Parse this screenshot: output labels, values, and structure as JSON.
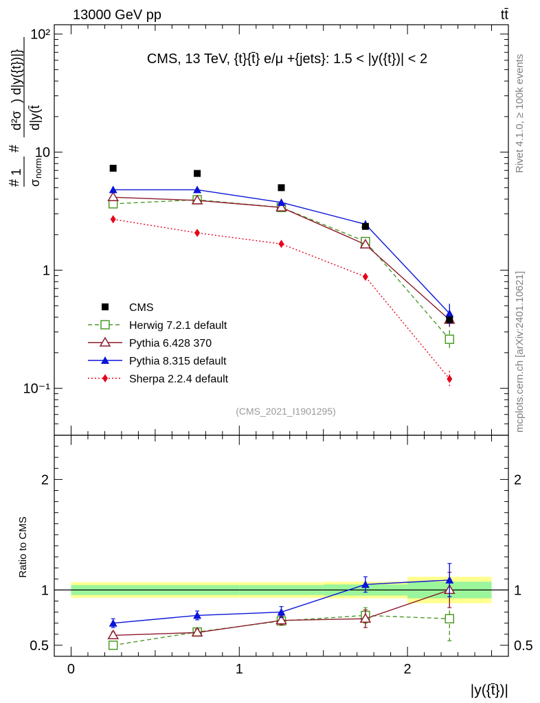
{
  "header": {
    "energy_label": "13000 GeV pp",
    "process_label": "tt̄"
  },
  "side_labels": {
    "rivet": "Rivet 4.1.0, ≥ 100k events",
    "source": "mcplots.cern.ch [arXiv:2401.10621]"
  },
  "chart_data": {
    "type": "line",
    "title": "CMS, 13 TeV, {t}{t̄} e/μ +{jets}: 1.5 < |y({t})| < 2",
    "watermark": "(CMS_2021_I1901295)",
    "xlabel": "|y({t̄})|",
    "ylabel_main": "1/σnorm d²σ / d|y(t̄)| d|y({t})|",
    "ylabel_ratio": "Ratio to CMS",
    "x_range": [
      -0.1,
      2.6
    ],
    "y_range_main": [
      0.04,
      120
    ],
    "y_scale_main": "log",
    "y_range_ratio": [
      0.4,
      2.4
    ],
    "x_ticks": [
      "0",
      "1",
      "2"
    ],
    "y_ticks_main": [
      "10⁻¹",
      "1",
      "10",
      "10²"
    ],
    "y_ticks_ratio": [
      "0.5",
      "1",
      "2"
    ],
    "bins": [
      [
        0,
        0.5
      ],
      [
        0.5,
        1
      ],
      [
        1,
        1.5
      ],
      [
        1.5,
        2
      ],
      [
        2,
        2.5
      ]
    ],
    "x": [
      0.25,
      0.75,
      1.25,
      1.75,
      2.25
    ],
    "data": {
      "name": "CMS",
      "values": [
        7.3,
        6.6,
        5.0,
        2.35,
        0.38
      ],
      "band_inner": [
        0.045,
        0.045,
        0.045,
        0.05,
        0.075
      ],
      "band_outer": [
        0.07,
        0.07,
        0.07,
        0.075,
        0.12
      ]
    },
    "series": [
      {
        "name": "Herwig 7.2.1 default",
        "color": "#4c9a26",
        "dash": "6,4",
        "marker": "open-square",
        "values": [
          3.65,
          3.95,
          3.4,
          1.75,
          0.26
        ],
        "errors": [
          0.12,
          0.14,
          0.14,
          0.1,
          0.05
        ],
        "ratio": [
          0.5,
          0.62,
          0.72,
          0.77,
          0.74
        ],
        "ratio_errors": [
          0.03,
          0.03,
          0.04,
          0.07,
          0.2
        ]
      },
      {
        "name": "Pythia 6.428 370",
        "color": "#8b1a2a",
        "dash": "",
        "marker": "open-triangle",
        "values": [
          4.15,
          3.9,
          3.4,
          1.65,
          0.38
        ],
        "errors": [
          0.14,
          0.14,
          0.14,
          0.12,
          0.05
        ],
        "ratio": [
          0.59,
          0.615,
          0.725,
          0.74,
          1.0
        ],
        "ratio_errors": [
          0.03,
          0.03,
          0.04,
          0.08,
          0.16
        ]
      },
      {
        "name": "Pythia 8.315 default",
        "color": "#0a14d8",
        "dash": "",
        "marker": "filled-triangle",
        "values": [
          4.8,
          4.8,
          3.75,
          2.45,
          0.43
        ],
        "errors": [
          0.18,
          0.18,
          0.25,
          0.2,
          0.09
        ],
        "ratio": [
          0.7,
          0.77,
          0.8,
          1.05,
          1.09
        ],
        "ratio_errors": [
          0.04,
          0.04,
          0.05,
          0.07,
          0.15
        ]
      },
      {
        "name": "Sherpa 2.2.4 default",
        "color": "#e8001a",
        "dash": "2,3",
        "marker": "filled-diamond",
        "values": [
          2.7,
          2.07,
          1.67,
          0.88,
          0.12
        ],
        "errors": [
          0.06,
          0.05,
          0.05,
          0.04,
          0.02
        ],
        "ratio": null,
        "ratio_errors": null
      }
    ]
  }
}
